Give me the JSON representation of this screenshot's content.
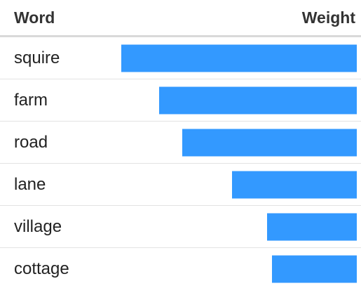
{
  "table": {
    "headers": {
      "word": "Word",
      "weight": "Weight"
    },
    "bar_color": "#3399ff",
    "rows": [
      {
        "word": "squire",
        "weight": 1.0
      },
      {
        "word": "farm",
        "weight": 0.84
      },
      {
        "word": "road",
        "weight": 0.74
      },
      {
        "word": "lane",
        "weight": 0.53
      },
      {
        "word": "village",
        "weight": 0.38
      },
      {
        "word": "cottage",
        "weight": 0.36
      }
    ]
  }
}
